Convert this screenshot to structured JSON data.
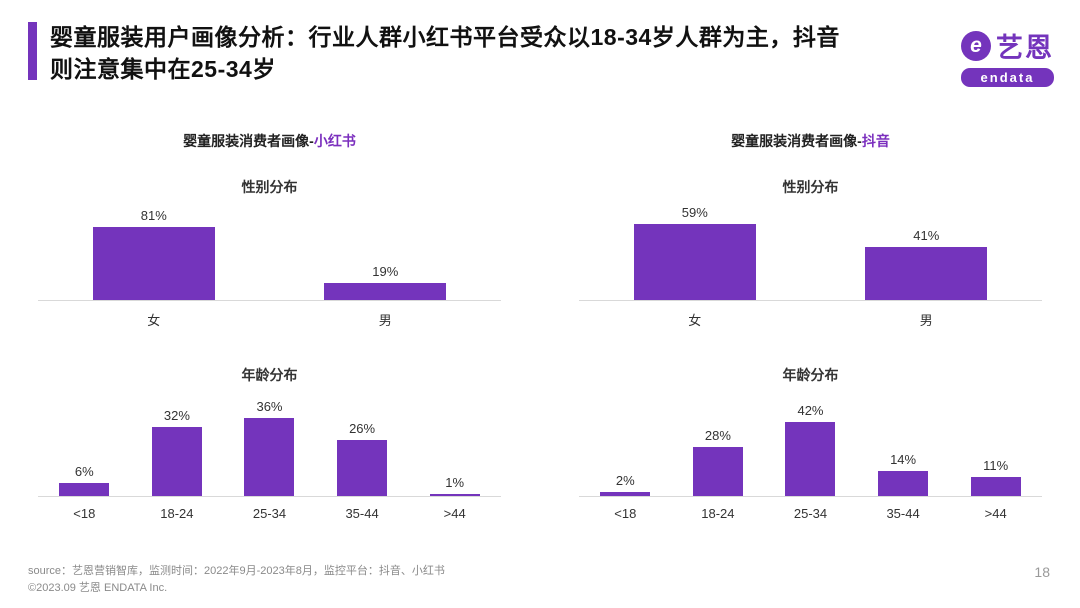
{
  "header": {
    "title_line1": "婴童服装用户画像分析：行业人群小红书平台受众以18-34岁人群为主，抖音",
    "title_line2": "则注意集中在25-34岁"
  },
  "logo": {
    "icon_letter": "e",
    "name_cn": "艺恩",
    "name_en": "endata"
  },
  "colors": {
    "primary": "#7434BC",
    "platform_text": "#7B2FBE"
  },
  "chart_data": [
    {
      "panel": "xiaohongshu",
      "title_prefix": "婴童服装消费者画像-",
      "platform": "小红书",
      "charts": [
        {
          "type": "bar",
          "title": "性别分布",
          "categories": [
            "女",
            "男"
          ],
          "values": [
            81,
            19
          ],
          "unit": "%",
          "ylim": [
            0,
            100
          ],
          "grid": false,
          "legend": "none"
        },
        {
          "type": "bar",
          "title": "年龄分布",
          "categories": [
            "<18",
            "18-24",
            "25-34",
            "35-44",
            ">44"
          ],
          "values": [
            6,
            32,
            36,
            26,
            1
          ],
          "unit": "%",
          "ylim": [
            0,
            45
          ],
          "grid": false,
          "legend": "none"
        }
      ]
    },
    {
      "panel": "douyin",
      "title_prefix": "婴童服装消费者画像-",
      "platform": "抖音",
      "charts": [
        {
          "type": "bar",
          "title": "性别分布",
          "categories": [
            "女",
            "男"
          ],
          "values": [
            59,
            41
          ],
          "unit": "%",
          "ylim": [
            0,
            70
          ],
          "grid": false,
          "legend": "none"
        },
        {
          "type": "bar",
          "title": "年龄分布",
          "categories": [
            "<18",
            "18-24",
            "25-34",
            "35-44",
            ">44"
          ],
          "values": [
            2,
            28,
            42,
            14,
            11
          ],
          "unit": "%",
          "ylim": [
            0,
            55
          ],
          "grid": false,
          "legend": "none"
        }
      ]
    }
  ],
  "footer": {
    "source": "source：艺恩营销智库，监测时间：2022年9月-2023年8月，监控平台：抖音、小红书",
    "copyright": "©2023.09 艺恩 ENDATA Inc.",
    "page": "18"
  }
}
